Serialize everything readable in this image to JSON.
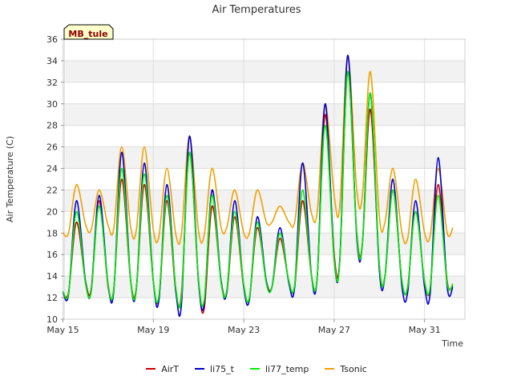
{
  "chart_data": {
    "type": "line",
    "title": "Air Temperatures",
    "xlabel": "Time",
    "ylabel": "Air Temperature (C)",
    "annotation": "MB_tule",
    "x_range": [
      "2024-05-15",
      "2024-06-02"
    ],
    "ylim": [
      10,
      36
    ],
    "yticks": [
      10,
      12,
      14,
      16,
      18,
      20,
      22,
      24,
      26,
      28,
      30,
      32,
      34,
      36
    ],
    "xtick_labels": [
      "May 15",
      "May 19",
      "May 23",
      "May 27",
      "May 31"
    ],
    "grid": true,
    "legend_position": "bottom",
    "x_day_offsets": [
      0,
      0.25,
      0.6,
      1.0,
      1.25,
      1.6,
      2.0,
      2.25,
      2.6,
      3.0,
      3.25,
      3.6,
      4.0,
      4.25,
      4.6,
      5.0,
      5.25,
      5.6,
      6.0,
      6.25,
      6.6,
      7.0,
      7.25,
      7.6,
      8.0,
      8.25,
      8.6,
      9.0,
      9.25,
      9.6,
      10.0,
      10.25,
      10.6,
      11.0,
      11.25,
      11.6,
      12.0,
      12.25,
      12.6,
      13.0,
      13.25,
      13.6,
      14.0,
      14.25,
      14.6,
      15.0,
      15.25,
      15.6,
      16.0,
      16.25,
      16.6,
      17.0,
      17.25
    ],
    "series": [
      {
        "name": "AirT",
        "color": "#cc0000",
        "values": [
          12.5,
          12.5,
          19.0,
          13.5,
          12.8,
          21.0,
          13.0,
          12.8,
          23.0,
          13.5,
          12.9,
          22.5,
          13.5,
          12.0,
          21.0,
          12.5,
          12.5,
          25.5,
          13.5,
          11.0,
          20.5,
          13.5,
          12.5,
          19.5,
          13.0,
          12.0,
          18.5,
          13.5,
          13.0,
          17.5,
          13.5,
          13.0,
          21.0,
          14.0,
          14.0,
          29.0,
          16.0,
          15.5,
          33.0,
          18.0,
          17.0,
          29.5,
          15.0,
          14.0,
          22.0,
          13.5,
          13.0,
          20.0,
          13.5,
          13.0,
          22.5,
          13.5,
          13.2
        ]
      },
      {
        "name": "li75_t",
        "color": "#0000cc",
        "values": [
          12.5,
          12.3,
          21.0,
          13.5,
          12.6,
          21.5,
          13.2,
          12.6,
          25.5,
          13.5,
          12.8,
          24.5,
          13.5,
          11.8,
          22.5,
          12.5,
          11.5,
          27.0,
          13.5,
          11.5,
          22.0,
          13.5,
          12.5,
          21.0,
          13.0,
          11.8,
          19.5,
          13.5,
          13.0,
          18.5,
          13.3,
          13.0,
          24.5,
          14.0,
          14.0,
          30.0,
          15.5,
          15.5,
          34.5,
          17.5,
          17.0,
          31.0,
          14.5,
          14.0,
          23.0,
          13.0,
          12.5,
          21.0,
          13.0,
          12.5,
          25.0,
          13.0,
          13.0
        ]
      },
      {
        "name": "li77_temp",
        "color": "#00ee00",
        "values": [
          12.6,
          12.4,
          20.0,
          13.3,
          12.6,
          20.5,
          13.2,
          12.8,
          24.0,
          13.5,
          12.8,
          23.5,
          13.5,
          12.2,
          21.5,
          12.8,
          12.2,
          25.5,
          13.7,
          11.8,
          21.5,
          13.3,
          12.7,
          20.0,
          13.2,
          12.0,
          19.0,
          13.3,
          13.0,
          18.0,
          13.5,
          13.2,
          22.0,
          14.0,
          14.0,
          28.0,
          15.5,
          15.3,
          33.0,
          17.8,
          17.0,
          31.0,
          15.0,
          14.0,
          22.0,
          13.5,
          13.0,
          20.0,
          13.5,
          13.0,
          21.5,
          13.3,
          13.3
        ]
      },
      {
        "name": "Tsonic",
        "color": "#f0a000",
        "values": [
          18.0,
          18.0,
          22.5,
          18.8,
          18.3,
          22.0,
          18.7,
          18.4,
          26.0,
          18.5,
          18.3,
          26.0,
          18.3,
          17.7,
          24.0,
          17.8,
          18.0,
          27.0,
          18.2,
          17.8,
          24.0,
          18.5,
          18.5,
          22.0,
          18.0,
          18.0,
          22.0,
          19.0,
          19.0,
          20.5,
          19.0,
          19.0,
          24.5,
          19.8,
          20.0,
          30.0,
          21.5,
          20.5,
          34.5,
          22.0,
          21.5,
          33.0,
          19.5,
          19.0,
          24.0,
          18.0,
          17.5,
          23.0,
          18.0,
          17.8,
          24.0,
          18.0,
          18.5
        ]
      }
    ]
  }
}
